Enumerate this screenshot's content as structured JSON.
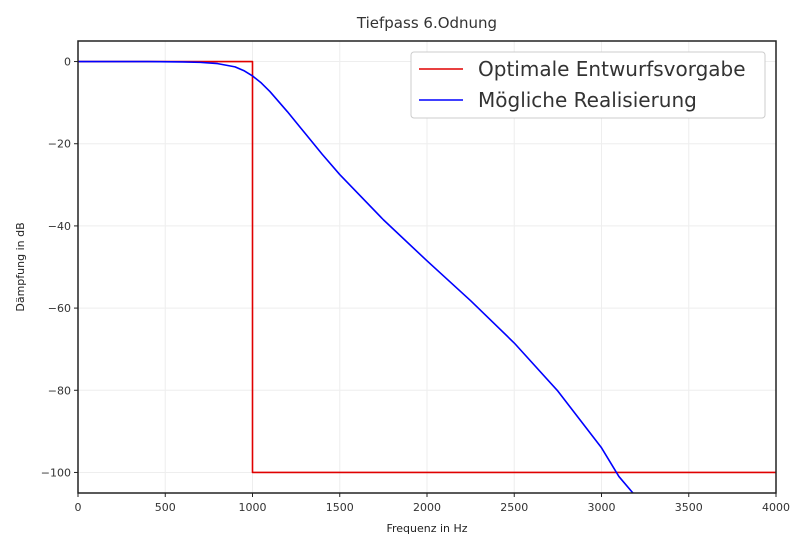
{
  "chart_data": {
    "type": "line",
    "title": "Tiefpass 6.Odnung",
    "xlabel": "Frequenz in Hz",
    "ylabel": "Dämpfung in dB",
    "xlim": [
      0,
      4000
    ],
    "ylim": [
      -105,
      5
    ],
    "grid": true,
    "legend_position": "top-right",
    "x_ticks": [
      0,
      500,
      1000,
      1500,
      2000,
      2500,
      3000,
      3500,
      4000
    ],
    "x_tick_labels": [
      "0",
      "500",
      "1000",
      "1500",
      "2000",
      "2500",
      "3000",
      "3500",
      "4000"
    ],
    "y_ticks": [
      0,
      -20,
      -40,
      -60,
      -80,
      -100
    ],
    "y_tick_labels": [
      "0",
      "−20",
      "−40",
      "−60",
      "−80",
      "−100"
    ],
    "series": [
      {
        "name": "Optimale Entwurfsvorgabe",
        "color": "#e00000",
        "x": [
          0,
          1000,
          1000,
          4000
        ],
        "y": [
          0,
          0,
          -100,
          -100
        ]
      },
      {
        "name": "Mögliche Realisierung",
        "color": "#0000ff",
        "x": [
          0,
          200,
          400,
          600,
          700,
          800,
          900,
          950,
          1000,
          1050,
          1100,
          1200,
          1300,
          1400,
          1500,
          1750,
          2000,
          2250,
          2500,
          2750,
          3000,
          3100,
          3200
        ],
        "y": [
          0,
          0,
          0,
          -0.1,
          -0.2,
          -0.5,
          -1.3,
          -2.2,
          -3.5,
          -5.2,
          -7.3,
          -12.2,
          -17.4,
          -22.6,
          -27.5,
          -38.5,
          -48.5,
          -58.2,
          -68.5,
          -80.2,
          -94.0,
          -101.0,
          -106.0
        ]
      }
    ]
  }
}
